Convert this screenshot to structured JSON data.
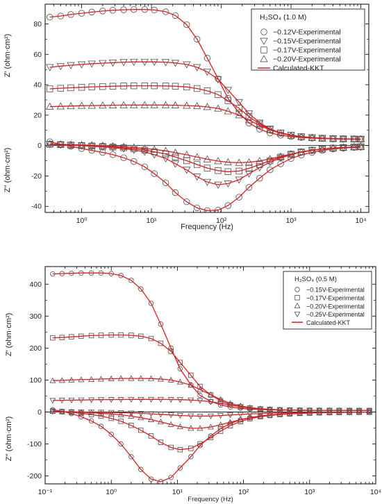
{
  "chart_data": [
    {
      "type": "line",
      "xscale": "log",
      "xlabel": "Frequency (Hz)",
      "ylabel_upper": "Z' (ohm·cm²)",
      "ylabel_lower": "Z'' (ohm·cm²)",
      "xlim": [
        0.3,
        13000
      ],
      "ylim": [
        -44,
        93
      ],
      "yticks": [
        -40,
        -20,
        0,
        20,
        40,
        60,
        80
      ],
      "xticks": [
        1,
        10,
        100,
        1000,
        10000
      ],
      "xtick_labels": [
        "10⁰",
        "10¹",
        "10²",
        "10³",
        "10⁴"
      ],
      "legend": {
        "title_prefix": "H₂SO₄",
        "title_suffix": " (1.0 M)",
        "placement": "top-right",
        "entries": [
          {
            "label": "−0.12V-Experimental",
            "marker": "circle"
          },
          {
            "label": "−0.15V-Experimental",
            "marker": "triangle-down"
          },
          {
            "label": "−0.17V-Experimental",
            "marker": "square"
          },
          {
            "label": "−0.20V-Experimental",
            "marker": "triangle-up"
          },
          {
            "label": "Calculated-KKT",
            "marker": "line"
          }
        ]
      },
      "x": [
        0.35,
        0.5,
        0.7,
        1,
        1.4,
        2,
        2.8,
        4,
        5.6,
        8,
        11,
        16,
        22,
        32,
        45,
        63,
        90,
        125,
        180,
        250,
        355,
        500,
        710,
        1000,
        1400,
        2000,
        2800,
        4000,
        5600,
        8000,
        10000
      ],
      "series": [
        {
          "marker": "circle",
          "real": [
            84.5,
            85.2,
            86.2,
            87.0,
            87.8,
            88.5,
            89.0,
            89.3,
            89.5,
            89.5,
            89.2,
            88.0,
            85.5,
            79.5,
            70,
            57.5,
            44,
            31,
            21.5,
            14.8,
            10.8,
            8.3,
            6.8,
            5.9,
            5.3,
            4.9,
            4.6,
            4.4,
            4.3,
            4.2,
            4.2
          ],
          "imag": [
            2.5,
            0.8,
            -0.5,
            -2.0,
            -3.2,
            -4.5,
            -6.0,
            -8.0,
            -10.5,
            -14.0,
            -18.5,
            -24.5,
            -31,
            -37,
            -41,
            -42.8,
            -42.5,
            -39.5,
            -34,
            -27.5,
            -21.5,
            -16,
            -12,
            -8.5,
            -6.2,
            -4.5,
            -3.2,
            -2.3,
            -1.7,
            -1.2,
            -1.0
          ]
        },
        {
          "marker": "triangle-down",
          "real": [
            51.5,
            52.2,
            52.8,
            53.3,
            53.8,
            54.2,
            54.5,
            54.8,
            55.0,
            55.0,
            55.0,
            54.8,
            54.3,
            53.3,
            51.5,
            48.5,
            43.5,
            36.5,
            28.5,
            21,
            15,
            11,
            8.4,
            6.9,
            5.9,
            5.3,
            4.9,
            4.6,
            4.4,
            4.3,
            4.2
          ],
          "imag": [
            0.8,
            0.5,
            0.2,
            -0.1,
            -0.5,
            -0.9,
            -1.4,
            -2.0,
            -2.9,
            -4.2,
            -6.0,
            -8.5,
            -12,
            -16,
            -20.5,
            -24,
            -25.8,
            -25,
            -22.5,
            -18.5,
            -14.5,
            -11,
            -8.2,
            -6.0,
            -4.4,
            -3.2,
            -2.3,
            -1.7,
            -1.3,
            -1.0,
            -0.8
          ]
        },
        {
          "marker": "square",
          "real": [
            37.3,
            37.7,
            38.0,
            38.3,
            38.6,
            38.8,
            39.0,
            39.2,
            39.3,
            39.3,
            39.3,
            39.2,
            39.0,
            38.5,
            37.5,
            36,
            33.5,
            29.5,
            24.5,
            19,
            14.2,
            10.6,
            8.2,
            6.7,
            5.8,
            5.2,
            4.8,
            4.5,
            4.4,
            4.3,
            4.2
          ],
          "imag": [
            0.9,
            0.6,
            0.3,
            0.0,
            -0.3,
            -0.6,
            -1.0,
            -1.5,
            -2.1,
            -3.0,
            -4.1,
            -5.6,
            -7.6,
            -10,
            -12.5,
            -14.8,
            -16.5,
            -17.2,
            -16.8,
            -15,
            -12.5,
            -10,
            -7.6,
            -5.7,
            -4.2,
            -3.1,
            -2.3,
            -1.7,
            -1.3,
            -1.0,
            -0.8
          ]
        },
        {
          "marker": "triangle-up",
          "real": [
            25.6,
            25.8,
            26.0,
            26.2,
            26.3,
            26.4,
            26.5,
            26.6,
            26.6,
            26.6,
            26.6,
            26.6,
            26.5,
            26.3,
            26,
            25.4,
            24.4,
            22.6,
            20,
            16.8,
            13.3,
            10.3,
            8.1,
            6.6,
            5.7,
            5.1,
            4.7,
            4.5,
            4.3,
            4.2,
            4.2
          ],
          "imag": [
            1.0,
            0.8,
            0.6,
            0.4,
            0.2,
            -0.1,
            -0.4,
            -0.8,
            -1.3,
            -1.9,
            -2.6,
            -3.5,
            -4.7,
            -6.1,
            -7.6,
            -9.0,
            -10.2,
            -11.0,
            -11.3,
            -11.0,
            -10.1,
            -8.8,
            -7.2,
            -5.6,
            -4.2,
            -3.1,
            -2.3,
            -1.7,
            -1.3,
            -1.0,
            -0.8
          ]
        }
      ]
    },
    {
      "type": "line",
      "xscale": "log",
      "xlabel": "Frequency (Hz)",
      "ylabel_upper": "Z' (ohm·cm²)",
      "ylabel_lower": "Z'' (ohm·cm²)",
      "xlim": [
        0.1,
        10000
      ],
      "ylim": [
        -225,
        455
      ],
      "yticks": [
        -200,
        -100,
        0,
        100,
        200,
        300,
        400
      ],
      "xticks": [
        0.1,
        1,
        10,
        100,
        1000,
        10000
      ],
      "xtick_labels": [
        "10⁻¹",
        "10⁰",
        "10¹",
        "10²",
        "10³",
        "10⁴"
      ],
      "legend": {
        "title_prefix": "H₂SO₄",
        "title_suffix": " (0.5 M)",
        "placement": "top-right",
        "entries": [
          {
            "label": "−0.15V-Experimental",
            "marker": "circle"
          },
          {
            "label": "−0.17V-Experimental",
            "marker": "square"
          },
          {
            "label": "−0.20V-Experimental",
            "marker": "triangle-up"
          },
          {
            "label": "−0.25V-Experimental",
            "marker": "triangle-down"
          },
          {
            "label": "Calculated-KKT",
            "marker": "line"
          }
        ]
      },
      "x": [
        0.13,
        0.18,
        0.25,
        0.35,
        0.5,
        0.7,
        1,
        1.4,
        2,
        2.8,
        4,
        5.6,
        8,
        11,
        16,
        22,
        32,
        45,
        63,
        90,
        125,
        180,
        250,
        355,
        500,
        710,
        1000,
        1400,
        2000,
        2800,
        4000,
        5600,
        8000
      ],
      "series": [
        {
          "marker": "circle",
          "real": [
            432,
            433,
            434,
            435,
            435,
            435,
            433,
            427,
            412,
            385,
            340,
            275,
            200,
            135,
            85,
            52,
            33,
            22,
            15.5,
            11.5,
            9,
            7.5,
            6.5,
            5.8,
            5.4,
            5.1,
            4.9,
            4.8,
            4.7,
            4.6,
            4.6,
            4.5,
            4.5
          ],
          "imag": [
            7,
            2,
            -5,
            -15,
            -28,
            -45,
            -70,
            -100,
            -140,
            -180,
            -210,
            -218,
            -205,
            -175,
            -140,
            -105,
            -75,
            -52,
            -36,
            -25,
            -18,
            -13,
            -9.5,
            -7,
            -5.2,
            -3.9,
            -3,
            -2.3,
            -1.8,
            -1.4,
            -1.1,
            -0.9,
            -0.7
          ]
        },
        {
          "marker": "square",
          "real": [
            232,
            233,
            235,
            237,
            239,
            240,
            241,
            241,
            240,
            237,
            230,
            215,
            190,
            155,
            115,
            80,
            53,
            35,
            23,
            16,
            12,
            9.3,
            7.7,
            6.6,
            5.9,
            5.4,
            5.1,
            4.9,
            4.8,
            4.7,
            4.6,
            4.5,
            4.5
          ],
          "imag": [
            3,
            1,
            -1,
            -4,
            -8,
            -13,
            -20,
            -29,
            -42,
            -57,
            -75,
            -95,
            -111,
            -118,
            -114,
            -100,
            -80,
            -60,
            -43,
            -30,
            -21,
            -15,
            -11,
            -8,
            -6,
            -4.5,
            -3.4,
            -2.6,
            -2,
            -1.5,
            -1.2,
            -0.9,
            -0.7
          ]
        },
        {
          "marker": "triangle-up",
          "real": [
            98,
            99,
            100,
            101,
            102,
            103,
            104,
            105,
            105,
            105,
            104.5,
            103,
            100,
            94,
            84,
            70,
            54,
            39,
            27,
            19,
            13.5,
            10.2,
            8.2,
            6.9,
            6.1,
            5.5,
            5.2,
            4.9,
            4.8,
            4.7,
            4.6,
            4.5,
            4.5
          ],
          "imag": [
            2,
            1,
            0,
            -1,
            -2.5,
            -4,
            -6,
            -9,
            -13,
            -18,
            -24,
            -31,
            -39,
            -46,
            -51,
            -51,
            -47,
            -40,
            -32,
            -24,
            -17.5,
            -12.8,
            -9.3,
            -6.9,
            -5.1,
            -3.9,
            -3,
            -2.3,
            -1.8,
            -1.4,
            -1.1,
            -0.9,
            -0.7
          ]
        },
        {
          "marker": "triangle-down",
          "real": [
            36,
            36.5,
            37,
            37.5,
            38,
            38.5,
            38.8,
            39,
            39.2,
            39.3,
            39.3,
            39.2,
            39,
            38.5,
            37.5,
            35.5,
            32,
            27,
            21.5,
            16.5,
            12.6,
            9.8,
            8,
            6.8,
            6,
            5.5,
            5.1,
            4.9,
            4.8,
            4.7,
            4.6,
            4.5,
            4.5
          ],
          "imag": [
            1.5,
            1,
            0.5,
            0,
            -0.5,
            -1,
            -1.6,
            -2.3,
            -3.2,
            -4.3,
            -5.7,
            -7.3,
            -9.2,
            -11,
            -12.4,
            -13,
            -12.5,
            -11.2,
            -9.5,
            -7.7,
            -6.1,
            -4.8,
            -3.8,
            -3,
            -2.4,
            -1.9,
            -1.5,
            -1.2,
            -1,
            -0.8,
            -0.7,
            -0.6,
            -0.5
          ]
        }
      ]
    }
  ]
}
